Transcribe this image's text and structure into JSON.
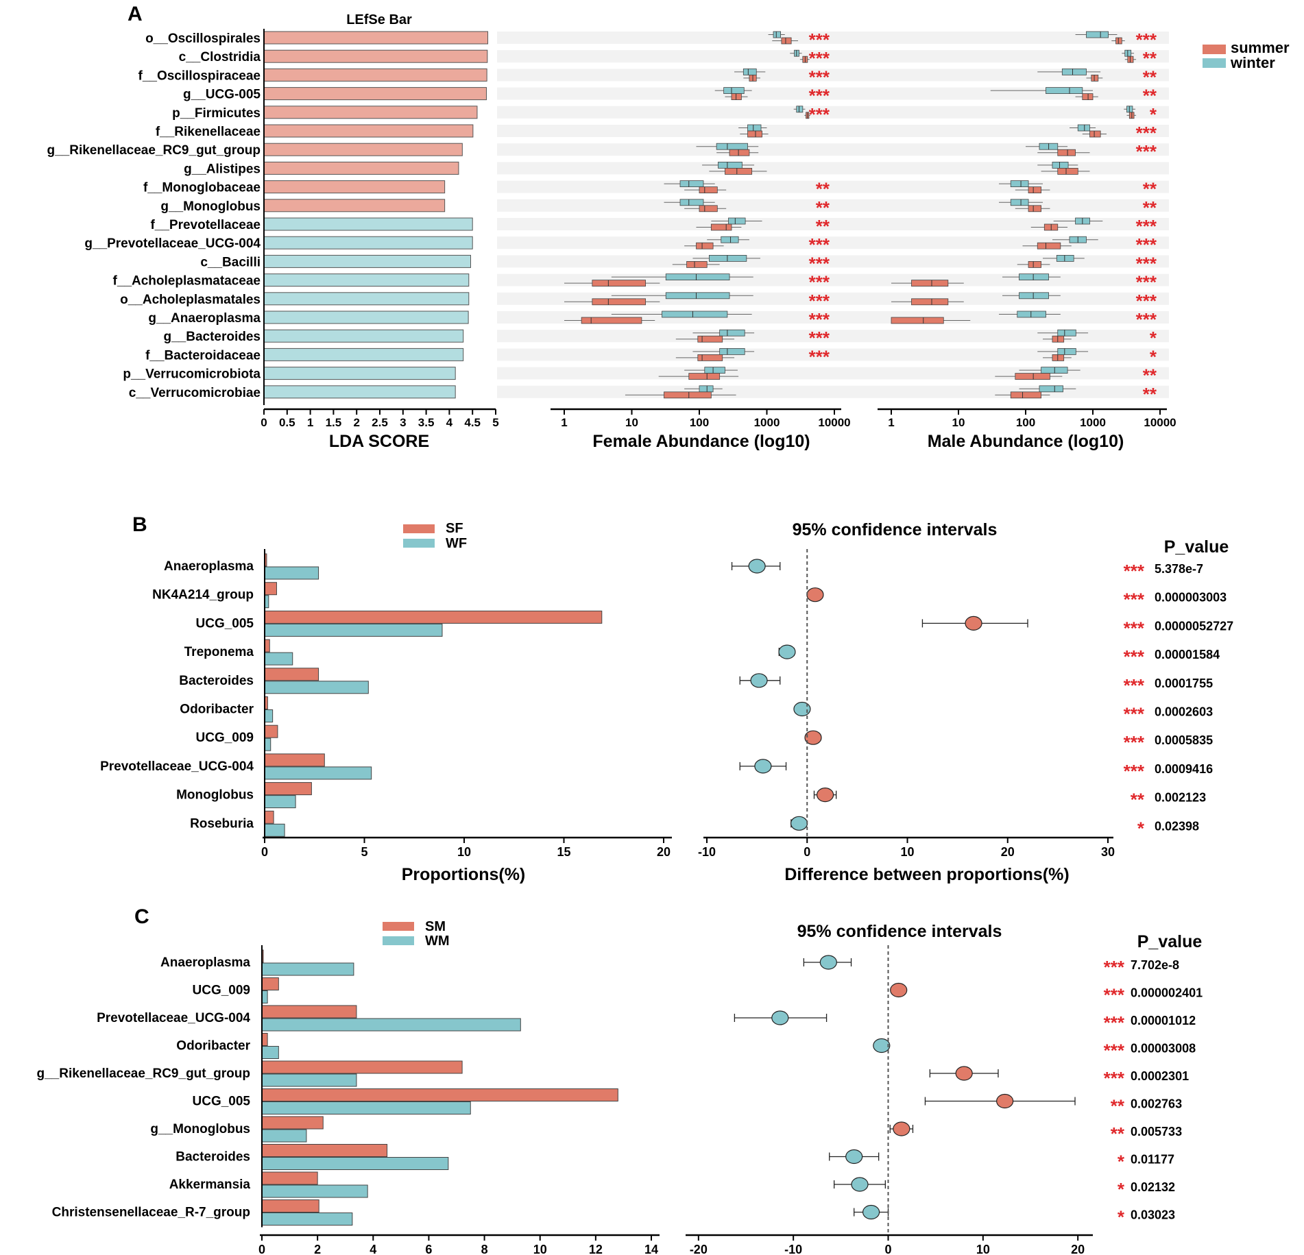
{
  "colors": {
    "summer": "#e07b68",
    "winter": "#86c6cc",
    "summer_light": "#eba99c",
    "winter_light": "#b3dde0",
    "star": "#e0292c",
    "stripe": "#f2f2f2"
  },
  "chart_data": [
    {
      "panel": "A",
      "type": "bar",
      "title": "LEfSe Bar",
      "legend": [
        {
          "name": "summer",
          "color": "#e07b68"
        },
        {
          "name": "winter",
          "color": "#86c6cc"
        }
      ],
      "lda": {
        "xlabel": "LDA SCORE",
        "xlim": [
          0,
          5
        ],
        "ticks": [
          "0",
          "0.5",
          "1",
          "1.5",
          "2",
          "2.5",
          "3",
          "3.5",
          "4",
          "4.5",
          "5"
        ],
        "taxa": [
          "o__Oscillospirales",
          "c__Clostridia",
          "f__Oscillospiraceae",
          "g__UCG-005",
          "p__Firmicutes",
          "f__Rikenellaceae",
          "g__Rikenellaceae_RC9_gut_group",
          "g__Alistipes",
          "f__Monoglobaceae",
          "g__Monoglobus",
          "f__Prevotellaceae",
          "g__Prevotellaceae_UCG-004",
          "c__Bacilli",
          "f__Acholeplasmataceae",
          "o__Acholeplasmatales",
          "g__Anaeroplasma",
          "g__Bacteroides",
          "f__Bacteroidaceae",
          "p__Verrucomicrobiota",
          "c__Verrucomicrobiae"
        ],
        "scores": [
          4.83,
          4.82,
          4.81,
          4.8,
          4.6,
          4.51,
          4.28,
          4.2,
          3.9,
          3.9,
          4.5,
          4.5,
          4.46,
          4.42,
          4.42,
          4.41,
          4.3,
          4.3,
          4.13,
          4.13
        ],
        "group": [
          "summer",
          "summer",
          "summer",
          "summer",
          "summer",
          "summer",
          "summer",
          "summer",
          "summer",
          "summer",
          "winter",
          "winter",
          "winter",
          "winter",
          "winter",
          "winter",
          "winter",
          "winter",
          "winter",
          "winter"
        ]
      },
      "female": {
        "xlabel": "Female Abundance (log10)",
        "xlim": [
          1,
          10000
        ],
        "ticks": [
          "1",
          "10",
          "100",
          "1000",
          "10000"
        ],
        "stars": [
          "***",
          "***",
          "***",
          "***",
          "***",
          "",
          "",
          "",
          "**",
          "**",
          "**",
          "***",
          "***",
          "***",
          "***",
          "***",
          "***",
          "***",
          "",
          ""
        ],
        "summer_box": [
          [
            1650,
            1900,
            2300,
            1200,
            2900
          ],
          [
            3400,
            3700,
            4000,
            3100,
            4300
          ],
          [
            550,
            620,
            700,
            450,
            800
          ],
          [
            300,
            350,
            420,
            240,
            520
          ],
          [
            3800,
            4000,
            4200,
            3600,
            4400
          ],
          [
            520,
            680,
            850,
            400,
            1050
          ],
          [
            280,
            380,
            550,
            180,
            750
          ],
          [
            240,
            360,
            600,
            140,
            1000
          ],
          [
            100,
            120,
            185,
            60,
            250
          ],
          [
            100,
            120,
            185,
            60,
            250
          ],
          [
            150,
            250,
            300,
            90,
            420
          ],
          [
            90,
            110,
            160,
            60,
            230
          ],
          [
            65,
            85,
            130,
            40,
            200
          ],
          [
            2.6,
            4.5,
            16,
            1,
            26
          ],
          [
            2.6,
            4.5,
            16,
            1,
            26
          ],
          [
            1.8,
            2.5,
            14,
            1,
            22
          ],
          [
            95,
            110,
            220,
            45,
            330
          ],
          [
            95,
            110,
            220,
            45,
            330
          ],
          [
            70,
            130,
            200,
            25,
            380
          ],
          [
            30,
            70,
            150,
            8,
            350
          ]
        ],
        "winter_box": [
          [
            1250,
            1380,
            1600,
            1050,
            1850
          ],
          [
            2550,
            2750,
            3000,
            2200,
            3300
          ],
          [
            450,
            530,
            700,
            330,
            950
          ],
          [
            230,
            300,
            460,
            170,
            600
          ],
          [
            2750,
            3000,
            3400,
            2500,
            3700
          ],
          [
            520,
            630,
            820,
            380,
            1000
          ],
          [
            180,
            260,
            520,
            90,
            750
          ],
          [
            190,
            260,
            430,
            110,
            650
          ],
          [
            52,
            70,
            115,
            30,
            170
          ],
          [
            52,
            70,
            115,
            30,
            170
          ],
          [
            270,
            340,
            480,
            150,
            850
          ],
          [
            210,
            290,
            380,
            130,
            550
          ],
          [
            140,
            260,
            500,
            80,
            800
          ],
          [
            32,
            90,
            280,
            5,
            630
          ],
          [
            32,
            90,
            280,
            5,
            630
          ],
          [
            28,
            80,
            260,
            5,
            600
          ],
          [
            200,
            260,
            470,
            80,
            650
          ],
          [
            200,
            260,
            470,
            80,
            650
          ],
          [
            120,
            160,
            240,
            60,
            370
          ],
          [
            100,
            130,
            160,
            60,
            220
          ]
        ]
      },
      "male": {
        "xlabel": "Male Abundance (log10)",
        "xlim": [
          1,
          10000
        ],
        "ticks": [
          "1",
          "10",
          "100",
          "1000",
          "10000"
        ],
        "stars": [
          "***",
          "**",
          "**",
          "**",
          "*",
          "***",
          "***",
          "",
          "**",
          "**",
          "***",
          "***",
          "***",
          "***",
          "***",
          "***",
          "*",
          "*",
          "**",
          "**"
        ],
        "summer_box": [
          [
            2200,
            2400,
            2700,
            1900,
            3000
          ],
          [
            3300,
            3600,
            4000,
            3000,
            4400
          ],
          [
            950,
            1050,
            1200,
            800,
            1400
          ],
          [
            700,
            850,
            1000,
            550,
            1200
          ],
          [
            3500,
            3800,
            4100,
            3200,
            4400
          ],
          [
            900,
            1050,
            1300,
            700,
            1600
          ],
          [
            300,
            420,
            550,
            150,
            900
          ],
          [
            300,
            400,
            600,
            170,
            900
          ],
          [
            110,
            130,
            170,
            70,
            230
          ],
          [
            110,
            130,
            170,
            70,
            230
          ],
          [
            190,
            240,
            300,
            120,
            420
          ],
          [
            150,
            200,
            330,
            90,
            480
          ],
          [
            110,
            130,
            170,
            75,
            230
          ],
          [
            2,
            4,
            7,
            1,
            12
          ],
          [
            2,
            4,
            7,
            1,
            12
          ],
          [
            1,
            3,
            6,
            1,
            15
          ],
          [
            250,
            300,
            370,
            180,
            480
          ],
          [
            250,
            300,
            370,
            180,
            480
          ],
          [
            70,
            130,
            230,
            35,
            350
          ],
          [
            60,
            90,
            170,
            35,
            230
          ]
        ],
        "winter_box": [
          [
            800,
            1300,
            1700,
            550,
            2300
          ],
          [
            3000,
            3300,
            3700,
            2700,
            4100
          ],
          [
            350,
            500,
            800,
            150,
            1300
          ],
          [
            200,
            450,
            700,
            30,
            1000
          ],
          [
            3200,
            3500,
            3900,
            2900,
            4300
          ],
          [
            600,
            750,
            900,
            450,
            1100
          ],
          [
            160,
            220,
            300,
            100,
            420
          ],
          [
            250,
            320,
            430,
            150,
            600
          ],
          [
            60,
            85,
            110,
            40,
            180
          ],
          [
            60,
            85,
            110,
            40,
            180
          ],
          [
            550,
            700,
            900,
            260,
            1400
          ],
          [
            450,
            600,
            800,
            250,
            1200
          ],
          [
            290,
            380,
            520,
            180,
            750
          ],
          [
            80,
            130,
            220,
            45,
            330
          ],
          [
            80,
            130,
            220,
            45,
            330
          ],
          [
            75,
            120,
            200,
            40,
            330
          ],
          [
            300,
            380,
            560,
            150,
            850
          ],
          [
            300,
            380,
            560,
            150,
            850
          ],
          [
            170,
            270,
            420,
            80,
            650
          ],
          [
            160,
            270,
            360,
            80,
            560
          ]
        ]
      }
    },
    {
      "panel": "B",
      "type": "bar",
      "categories": [
        "Anaeroplasma",
        "NK4A214_group",
        "UCG_005",
        "Treponema",
        "Bacteroides",
        "Odoribacter",
        "UCG_009",
        "Prevotellaceae_UCG-004",
        "Monoglobus",
        "Roseburia"
      ],
      "series": [
        {
          "name": "SF",
          "color": "#e07b68",
          "values": [
            0.1,
            0.6,
            16.9,
            0.25,
            2.7,
            0.15,
            0.65,
            3.0,
            2.35,
            0.45
          ]
        },
        {
          "name": "WF",
          "color": "#86c6cc",
          "values": [
            2.7,
            0.2,
            8.9,
            1.4,
            5.2,
            0.4,
            0.3,
            5.35,
            1.55,
            1.0
          ]
        }
      ],
      "xlabel": "Proportions(%)",
      "xlim": [
        0,
        20
      ],
      "xticks": [
        "0",
        "5",
        "10",
        "15",
        "20"
      ],
      "ci": {
        "title": "95% confidence intervals",
        "xlabel": "Difference between proportions(%)",
        "xlim": [
          -10,
          30
        ],
        "xticks": [
          "-10",
          "0",
          "10",
          "20",
          "30"
        ],
        "diff": [
          -5.0,
          0.8,
          16.6,
          -2.0,
          -4.8,
          -0.5,
          0.6,
          -4.4,
          1.8,
          -0.8
        ],
        "low": [
          -7.5,
          0.4,
          11.5,
          -2.8,
          -6.7,
          -1.0,
          0.3,
          -6.7,
          0.7,
          -1.6
        ],
        "high": [
          -2.7,
          1.2,
          22.0,
          -1.3,
          -2.7,
          -0.2,
          0.9,
          -2.1,
          2.9,
          -0.4
        ],
        "favored": [
          "WF",
          "SF",
          "SF",
          "WF",
          "WF",
          "WF",
          "SF",
          "WF",
          "SF",
          "WF"
        ]
      },
      "p_title": "P_value",
      "stars": [
        "***",
        "***",
        "***",
        "***",
        "***",
        "***",
        "***",
        "***",
        "**",
        "*"
      ],
      "p_values": [
        "5.378e-7",
        "0.000003003",
        "0.0000052727",
        "0.00001584",
        "0.0001755",
        "0.0002603",
        "0.0005835",
        "0.0009416",
        "0.002123",
        "0.02398"
      ]
    },
    {
      "panel": "C",
      "type": "bar",
      "categories": [
        "Anaeroplasma",
        "UCG_009",
        "Prevotellaceae_UCG-004",
        "Odoribacter",
        "g__Rikenellaceae_RC9_gut_group",
        "UCG_005",
        "g__Monoglobus",
        "Bacteroides",
        "Akkermansia",
        "Christensenellaceae_R-7_group"
      ],
      "series": [
        {
          "name": "SM",
          "color": "#e07b68",
          "values": [
            0.05,
            0.6,
            3.4,
            0.2,
            7.2,
            12.8,
            2.2,
            4.5,
            2.0,
            2.05
          ]
        },
        {
          "name": "WM",
          "color": "#86c6cc",
          "values": [
            3.3,
            0.2,
            9.3,
            0.6,
            3.4,
            7.5,
            1.6,
            6.7,
            3.8,
            3.25
          ]
        }
      ],
      "xlabel": "",
      "xlim": [
        0,
        14
      ],
      "xticks": [
        "0",
        "2",
        "4",
        "6",
        "8",
        "10",
        "12",
        "14"
      ],
      "ci": {
        "title": "95% confidence intervals",
        "xlabel": "",
        "xlim": [
          -21,
          21
        ],
        "xticks": [
          "-20",
          "-10",
          "0",
          "10",
          "20"
        ],
        "diff": [
          -6.3,
          1.1,
          -11.4,
          -0.7,
          8.0,
          12.3,
          1.4,
          -3.6,
          -3.0,
          -1.8
        ],
        "low": [
          -8.9,
          0.7,
          -16.2,
          -1.2,
          4.4,
          3.9,
          0.2,
          -6.2,
          -5.7,
          -3.6
        ],
        "high": [
          -3.9,
          1.5,
          -6.5,
          -0.2,
          11.6,
          19.7,
          2.6,
          -1.0,
          -0.3,
          0.0
        ],
        "favored": [
          "WM",
          "SM",
          "WM",
          "WM",
          "SM",
          "SM",
          "SM",
          "WM",
          "WM",
          "WM"
        ]
      },
      "p_title": "P_value",
      "stars": [
        "***",
        "***",
        "***",
        "***",
        "***",
        "**",
        "**",
        "*",
        "*",
        "*"
      ],
      "p_values": [
        "7.702e-8",
        "0.000002401",
        "0.00001012",
        "0.00003008",
        "0.0002301",
        "0.002763",
        "0.005733",
        "0.01177",
        "0.02132",
        "0.03023"
      ]
    }
  ]
}
